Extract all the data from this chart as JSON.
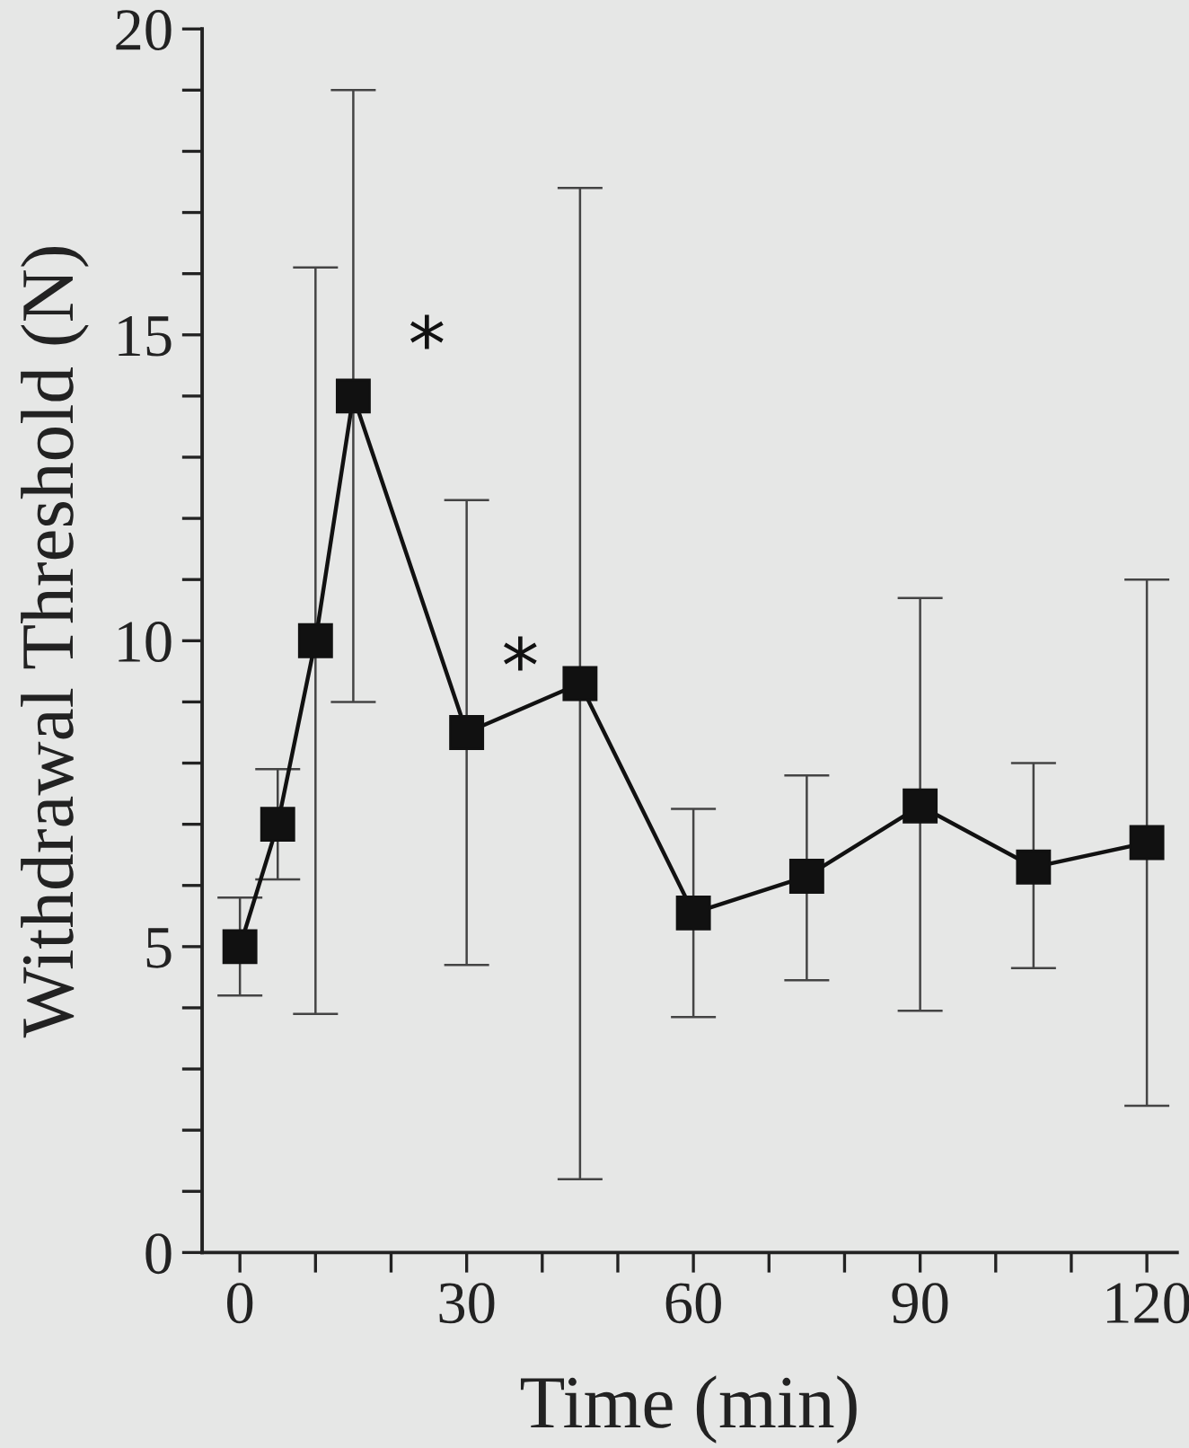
{
  "chart_data": {
    "type": "line",
    "xlabel": "Time (min)",
    "ylabel": "Withdrawal Threshold (N)",
    "x": [
      0,
      5,
      10,
      15,
      30,
      45,
      60,
      75,
      90,
      105,
      120
    ],
    "series": [
      {
        "color": "#111111",
        "values": [
          5.0,
          7.0,
          10.0,
          14.0,
          8.5,
          9.3,
          5.55,
          6.15,
          7.3,
          6.3,
          6.7
        ],
        "errors": [
          [
            4.2,
            5.8
          ],
          [
            6.1,
            7.9
          ],
          [
            3.9,
            16.1
          ],
          [
            9.0,
            19.0
          ],
          [
            4.7,
            12.3
          ],
          [
            1.2,
            17.4
          ],
          [
            3.85,
            7.25
          ],
          [
            4.45,
            7.8
          ],
          [
            3.95,
            10.7
          ],
          [
            4.65,
            8.0
          ],
          [
            2.4,
            11.0
          ]
        ]
      }
    ],
    "marker": "square",
    "line_style": "solid",
    "xlim": [
      -5,
      124
    ],
    "ylim": [
      0,
      20
    ],
    "xticks": [
      0,
      {
        "value": 10,
        "label": null
      },
      {
        "value": 20,
        "label": null
      },
      30,
      {
        "value": 40,
        "label": null
      },
      {
        "value": 50,
        "label": null
      },
      60,
      {
        "value": 70,
        "label": null
      },
      {
        "value": 80,
        "label": null
      },
      90,
      {
        "value": 100,
        "label": null
      },
      {
        "value": 110,
        "label": null
      },
      120
    ],
    "yticks": [
      0,
      {
        "value": 1,
        "label": null
      },
      {
        "value": 2,
        "label": null
      },
      {
        "value": 3,
        "label": null
      },
      {
        "value": 4,
        "label": null
      },
      5,
      {
        "value": 6,
        "label": null
      },
      {
        "value": 7,
        "label": null
      },
      {
        "value": 8,
        "label": null
      },
      {
        "value": 9,
        "label": null
      },
      10,
      {
        "value": 11,
        "label": null
      },
      {
        "value": 12,
        "label": null
      },
      {
        "value": 13,
        "label": null
      },
      {
        "value": 14,
        "label": null
      },
      15,
      {
        "value": 16,
        "label": null
      },
      {
        "value": 17,
        "label": null
      },
      {
        "value": 18,
        "label": null
      },
      {
        "value": 19,
        "label": null
      },
      20
    ],
    "grid": false,
    "legend": false,
    "annotations": [
      {
        "text": "*",
        "x": 15,
        "y": 14.0
      },
      {
        "text": "*",
        "x": 30,
        "y": 8.5
      }
    ]
  }
}
